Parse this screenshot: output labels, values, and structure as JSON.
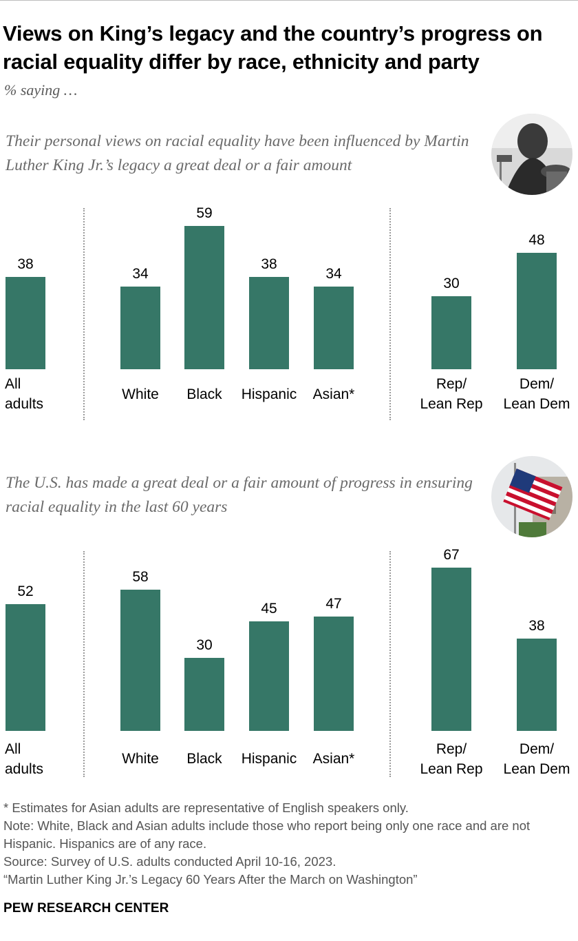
{
  "title": "Views on King’s legacy and the country’s progress on racial equality differ by race, ethnicity and party",
  "subtitle": "% saying …",
  "chart_data": [
    {
      "type": "bar",
      "title": "Their personal views on racial equality have been influenced by Martin Luther King Jr.’s legacy a great deal or a fair amount",
      "categories": [
        "All adults",
        "White",
        "Black",
        "Hispanic",
        "Asian*",
        "Rep/ Lean Rep",
        "Dem/ Lean Dem"
      ],
      "category_lines": [
        [
          "All",
          "adults"
        ],
        [
          "White"
        ],
        [
          "Black"
        ],
        [
          "Hispanic"
        ],
        [
          "Asian*"
        ],
        [
          "Rep/",
          "Lean Rep"
        ],
        [
          "Dem/",
          "Lean Dem"
        ]
      ],
      "values": [
        38,
        34,
        59,
        38,
        34,
        30,
        48
      ],
      "groups": [
        [
          "All adults"
        ],
        [
          "White",
          "Black",
          "Hispanic",
          "Asian*"
        ],
        [
          "Rep/ Lean Rep",
          "Dem/ Lean Dem"
        ]
      ],
      "bar_color": "#367767",
      "ylim": [
        0,
        100
      ],
      "grid": false
    },
    {
      "type": "bar",
      "title": "The U.S. has made a great deal or a fair amount of progress in ensuring racial equality in the last 60 years",
      "categories": [
        "All adults",
        "White",
        "Black",
        "Hispanic",
        "Asian*",
        "Rep/ Lean Rep",
        "Dem/ Lean Dem"
      ],
      "category_lines": [
        [
          "All",
          "adults"
        ],
        [
          "White"
        ],
        [
          "Black"
        ],
        [
          "Hispanic"
        ],
        [
          "Asian*"
        ],
        [
          "Rep/",
          "Lean Rep"
        ],
        [
          "Dem/",
          "Lean Dem"
        ]
      ],
      "values": [
        52,
        58,
        30,
        45,
        47,
        67,
        38
      ],
      "groups": [
        [
          "All adults"
        ],
        [
          "White",
          "Black",
          "Hispanic",
          "Asian*"
        ],
        [
          "Rep/ Lean Rep",
          "Dem/ Lean Dem"
        ]
      ],
      "bar_color": "#367767",
      "ylim": [
        0,
        100
      ],
      "grid": false
    }
  ],
  "photos": [
    "martin-luther-king-photo",
    "american-flag-photo"
  ],
  "notes": [
    "* Estimates for Asian adults are representative of English speakers only.",
    "Note: White, Black and Asian adults include those who report being only one race and are not Hispanic. Hispanics are of any race.",
    "Source: Survey of U.S. adults conducted April 10-16, 2023.",
    "“Martin Luther King Jr.’s Legacy 60 Years After the March on Washington”"
  ],
  "brand": "PEW RESEARCH CENTER"
}
